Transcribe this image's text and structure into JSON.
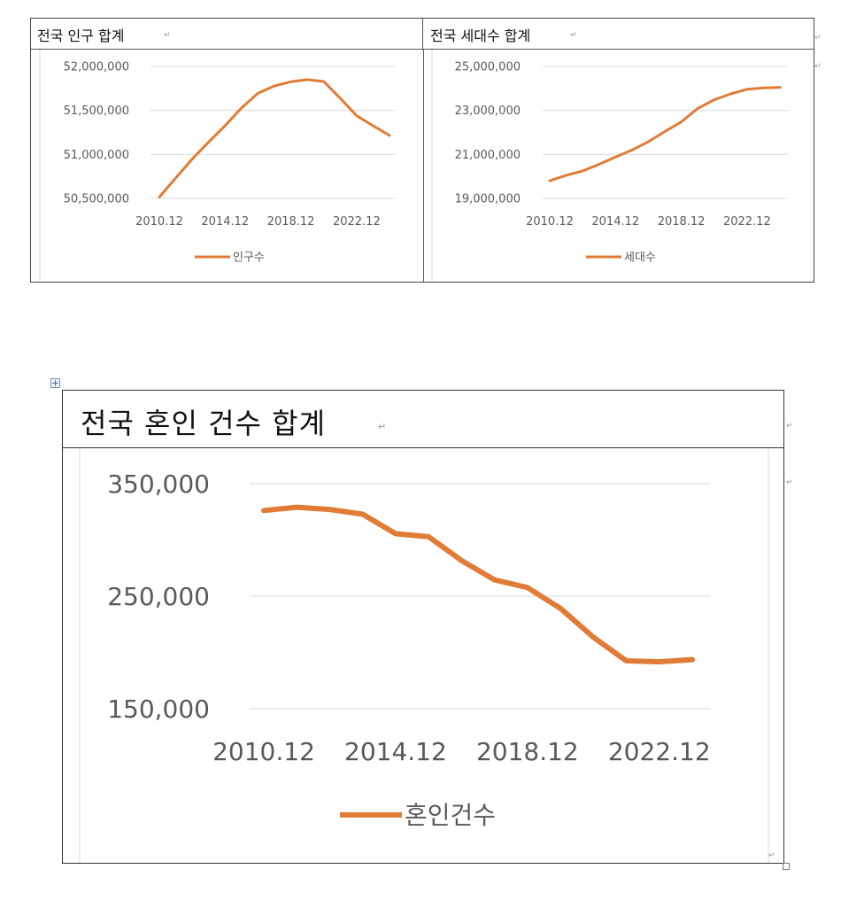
{
  "top_table": {
    "left_title": "전국 인구 합계",
    "right_title": "전국 세대수 합계"
  },
  "bottom_table": {
    "title": "전국 혼인 건수 합계"
  },
  "chart_data": [
    {
      "type": "line",
      "title": "전국 인구 합계",
      "categories": [
        "2010.12",
        "2011.12",
        "2012.12",
        "2013.12",
        "2014.12",
        "2015.12",
        "2016.12",
        "2017.12",
        "2018.12",
        "2019.12",
        "2020.12",
        "2021.12",
        "2022.12",
        "2023.12",
        "2024.12"
      ],
      "tick_labels": [
        "2010.12",
        "2014.12",
        "2018.12",
        "2022.12"
      ],
      "series": [
        {
          "name": "인구수",
          "values": [
            50516000,
            50734000,
            50948000,
            51141000,
            51328000,
            51529000,
            51696000,
            51779000,
            51826000,
            51850000,
            51829000,
            51639000,
            51439000,
            51325000,
            51217000
          ]
        }
      ],
      "ylim": [
        50500000,
        52000000
      ],
      "yticks": [
        "50,500,000",
        "51,000,000",
        "51,500,000",
        "52,000,000"
      ],
      "ytick_values": [
        50500000,
        51000000,
        51500000,
        52000000
      ],
      "legend": "인구수",
      "color": "#E07C35"
    },
    {
      "type": "line",
      "title": "전국 세대수 합계",
      "categories": [
        "2010.12",
        "2011.12",
        "2012.12",
        "2013.12",
        "2014.12",
        "2015.12",
        "2016.12",
        "2017.12",
        "2018.12",
        "2019.12",
        "2020.12",
        "2021.12",
        "2022.12",
        "2023.12",
        "2024.12"
      ],
      "tick_labels": [
        "2010.12",
        "2014.12",
        "2018.12",
        "2022.12"
      ],
      "series": [
        {
          "name": "세대수",
          "values": [
            19800000,
            20050000,
            20250000,
            20550000,
            20880000,
            21200000,
            21580000,
            22040000,
            22480000,
            23090000,
            23480000,
            23750000,
            23960000,
            24020000,
            24050000
          ]
        }
      ],
      "ylim": [
        19000000,
        25000000
      ],
      "yticks": [
        "19,000,000",
        "21,000,000",
        "23,000,000",
        "25,000,000"
      ],
      "ytick_values": [
        19000000,
        21000000,
        23000000,
        25000000
      ],
      "legend": "세대수",
      "color": "#E07C35"
    },
    {
      "type": "line",
      "title": "전국 혼인 건수 합계",
      "categories": [
        "2010.12",
        "2011.12",
        "2012.12",
        "2013.12",
        "2014.12",
        "2015.12",
        "2016.12",
        "2017.12",
        "2018.12",
        "2019.12",
        "2020.12",
        "2021.12",
        "2022.12",
        "2023.12"
      ],
      "tick_labels": [
        "2010.12",
        "2014.12",
        "2018.12",
        "2022.12"
      ],
      "series": [
        {
          "name": "혼인건수",
          "values": [
            326104,
            329087,
            327073,
            322807,
            305507,
            302828,
            281635,
            264455,
            257622,
            239159,
            213502,
            192507,
            191690,
            193657
          ]
        }
      ],
      "ylim": [
        150000,
        350000
      ],
      "yticks": [
        "150,000",
        "250,000",
        "350,000"
      ],
      "ytick_values": [
        150000,
        250000,
        350000
      ],
      "legend": "혼인건수",
      "color": "#E07C35"
    }
  ]
}
